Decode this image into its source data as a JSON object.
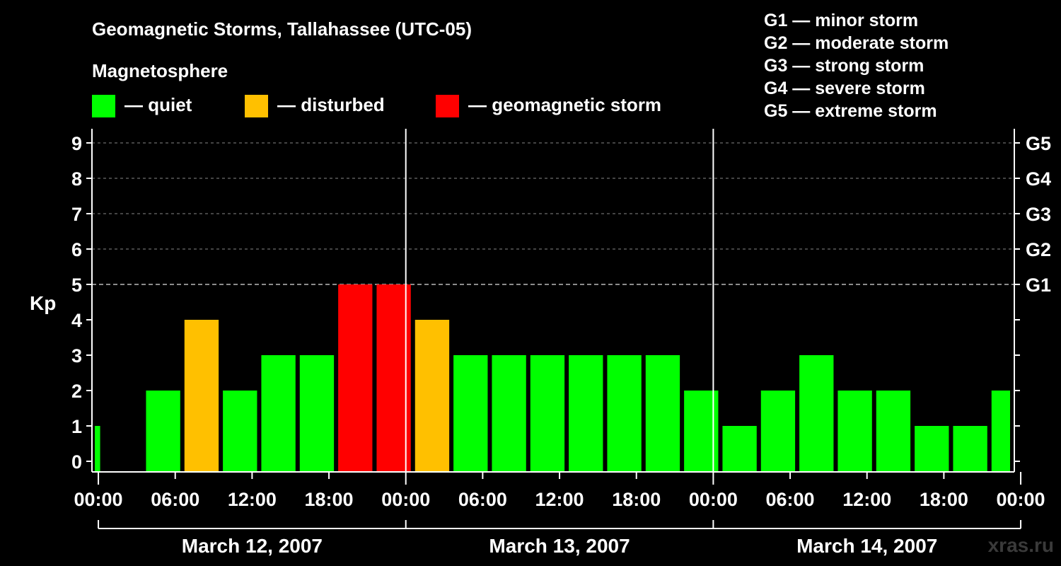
{
  "chart_data": {
    "type": "bar",
    "title": "Geomagnetic Storms, Tallahassee (UTC-05)",
    "legend_title": "Magnetosphere",
    "legend": [
      {
        "label": "— quiet",
        "color": "#00ff00"
      },
      {
        "label": "— disturbed",
        "color": "#ffc000"
      },
      {
        "label": "— geomagnetic storm",
        "color": "#ff0000"
      }
    ],
    "scale_legend": [
      "G1 — minor storm",
      "G2 — moderate storm",
      "G3 — strong storm",
      "G4 — severe storm",
      "G5 — extreme storm"
    ],
    "ylabel": "Kp",
    "ylim": [
      0,
      9
    ],
    "yticks": [
      "0",
      "1",
      "2",
      "3",
      "4",
      "5",
      "6",
      "7",
      "8",
      "9"
    ],
    "g_levels": [
      {
        "label": "G1",
        "kp": 5
      },
      {
        "label": "G2",
        "kp": 6
      },
      {
        "label": "G3",
        "kp": 7
      },
      {
        "label": "G4",
        "kp": 8
      },
      {
        "label": "G5",
        "kp": 9
      }
    ],
    "x_range_hours": [
      -0.5,
      71.5
    ],
    "x_tick_labels": [
      "00:00",
      "06:00",
      "12:00",
      "18:00",
      "00:00",
      "06:00",
      "12:00",
      "18:00",
      "00:00",
      "06:00",
      "12:00",
      "18:00",
      "00:00"
    ],
    "days": [
      "March 12, 2007",
      "March 13, 2007",
      "March 14, 2007"
    ],
    "bars": [
      {
        "start": "00:00",
        "end": "00:45",
        "kp": 1,
        "level": "quiet"
      },
      {
        "start": "04:00",
        "end": "07:00",
        "kp": 2,
        "level": "quiet"
      },
      {
        "start": "07:00",
        "end": "10:00",
        "kp": 4,
        "level": "disturbed"
      },
      {
        "start": "10:00",
        "end": "13:00",
        "kp": 2,
        "level": "quiet"
      },
      {
        "start": "13:00",
        "end": "16:00",
        "kp": 3,
        "level": "quiet"
      },
      {
        "start": "16:00",
        "end": "19:00",
        "kp": 3,
        "level": "quiet"
      },
      {
        "start": "19:00",
        "end": "22:00",
        "kp": 5,
        "level": "storm"
      },
      {
        "start": "22:00",
        "end": "01:00",
        "kp": 5,
        "level": "storm"
      },
      {
        "start": "01:00",
        "end": "04:00",
        "kp": 4,
        "level": "disturbed"
      },
      {
        "start": "04:00",
        "end": "07:00",
        "kp": 3,
        "level": "quiet"
      },
      {
        "start": "07:00",
        "end": "10:00",
        "kp": 3,
        "level": "quiet"
      },
      {
        "start": "10:00",
        "end": "13:00",
        "kp": 3,
        "level": "quiet"
      },
      {
        "start": "13:00",
        "end": "16:00",
        "kp": 3,
        "level": "quiet"
      },
      {
        "start": "16:00",
        "end": "19:00",
        "kp": 3,
        "level": "quiet"
      },
      {
        "start": "19:00",
        "end": "22:00",
        "kp": 3,
        "level": "quiet"
      },
      {
        "start": "22:00",
        "end": "01:00",
        "kp": 2,
        "level": "quiet"
      },
      {
        "start": "01:00",
        "end": "04:00",
        "kp": 1,
        "level": "quiet"
      },
      {
        "start": "04:00",
        "end": "07:00",
        "kp": 2,
        "level": "quiet"
      },
      {
        "start": "07:00",
        "end": "10:00",
        "kp": 3,
        "level": "quiet"
      },
      {
        "start": "10:00",
        "end": "13:00",
        "kp": 2,
        "level": "quiet"
      },
      {
        "start": "13:00",
        "end": "16:00",
        "kp": 2,
        "level": "quiet"
      },
      {
        "start": "16:00",
        "end": "19:00",
        "kp": 1,
        "level": "quiet"
      },
      {
        "start": "19:00",
        "end": "22:00",
        "kp": 1,
        "level": "quiet"
      },
      {
        "start": "22:00",
        "end": "00:00",
        "kp": 2,
        "level": "quiet"
      }
    ],
    "colors": {
      "quiet": "#00ff00",
      "disturbed": "#ffc000",
      "storm": "#ff0000"
    },
    "grid": "dashed at Kp 9, 8, 7, 6",
    "watermark": "xras.ru"
  }
}
